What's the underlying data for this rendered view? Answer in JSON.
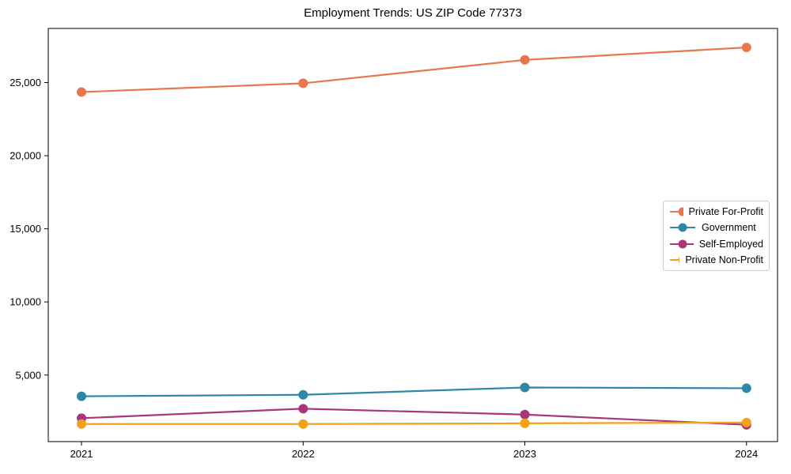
{
  "window": {
    "background": "#ffffff"
  },
  "chart_data": {
    "type": "line",
    "title": "Employment Trends: US ZIP Code 77373",
    "xlabel": "",
    "ylabel": "",
    "x": [
      2021,
      2022,
      2023,
      2024
    ],
    "series": [
      {
        "name": "Private For-Profit",
        "color": "#e8774b",
        "values": [
          24350,
          24950,
          26550,
          27400
        ]
      },
      {
        "name": "Government",
        "color": "#2f87a5",
        "values": [
          3550,
          3650,
          4150,
          4100
        ]
      },
      {
        "name": "Self-Employed",
        "color": "#a5387b",
        "values": [
          2050,
          2700,
          2300,
          1600
        ]
      },
      {
        "name": "Private Non-Profit",
        "color": "#f5a01a",
        "values": [
          1650,
          1650,
          1700,
          1750
        ]
      }
    ],
    "xlim": [
      2020.85,
      2024.14
    ],
    "ylim": [
      450,
      28700
    ],
    "xticks": {
      "values": [
        2021,
        2022,
        2023,
        2024
      ],
      "labels": [
        "2021",
        "2022",
        "2023",
        "2024"
      ]
    },
    "yticks": {
      "values": [
        5000,
        10000,
        15000,
        20000,
        25000
      ],
      "labels": [
        "5,000",
        "10,000",
        "15,000",
        "20,000",
        "25,000"
      ]
    },
    "grid": false,
    "legend_position": "center-right",
    "axis_color": "#000000",
    "marker": "circle",
    "marker_radius": 6,
    "line_width": 2.2
  }
}
